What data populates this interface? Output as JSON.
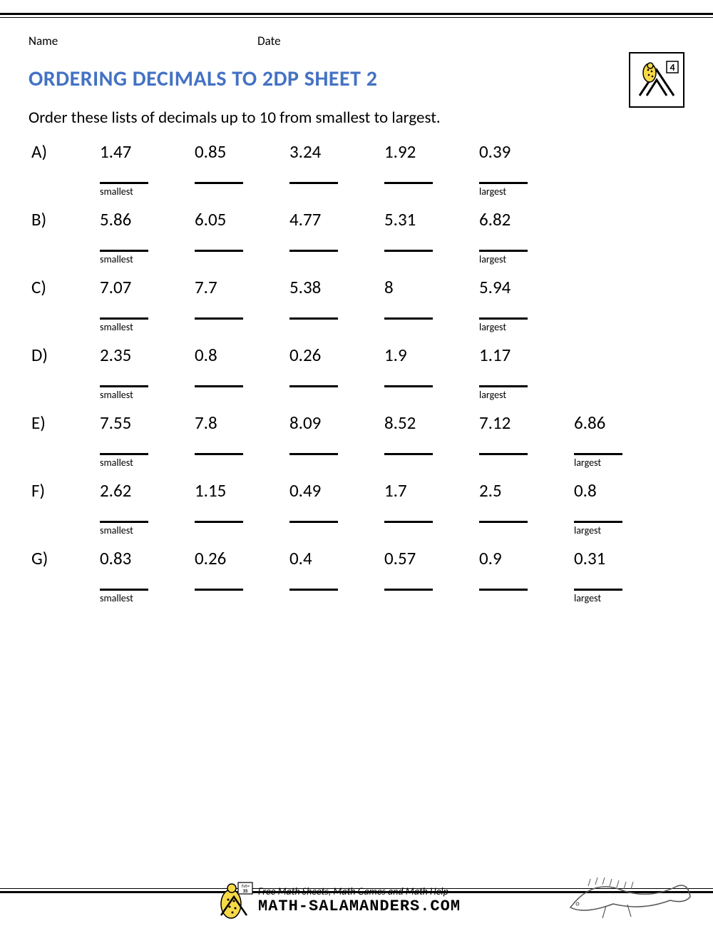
{
  "meta": {
    "name_label": "Name",
    "date_label": "Date",
    "grade_number": "4"
  },
  "title": "ORDERING DECIMALS TO 2DP SHEET 2",
  "title_color": "#4472c4",
  "instructions": "Order these lists of decimals up to 10 from smallest to largest.",
  "smallest_label": "smallest",
  "largest_label": "largest",
  "problems": [
    {
      "letter": "A)",
      "values": [
        "1.47",
        "0.85",
        "3.24",
        "1.92",
        "0.39"
      ]
    },
    {
      "letter": "B)",
      "values": [
        "5.86",
        "6.05",
        "4.77",
        "5.31",
        "6.82"
      ]
    },
    {
      "letter": "C)",
      "values": [
        "7.07",
        "7.7",
        "5.38",
        "8",
        "5.94"
      ]
    },
    {
      "letter": "D)",
      "values": [
        "2.35",
        "0.8",
        "0.26",
        "1.9",
        "1.17"
      ]
    },
    {
      "letter": "E)",
      "values": [
        "7.55",
        "7.8",
        "8.09",
        "8.52",
        "7.12",
        "6.86"
      ]
    },
    {
      "letter": "F)",
      "values": [
        "2.62",
        "1.15",
        "0.49",
        "1.7",
        "2.5",
        "0.8"
      ]
    },
    {
      "letter": "G)",
      "values": [
        "0.83",
        "0.26",
        "0.4",
        "0.57",
        "0.9",
        "0.31"
      ]
    }
  ],
  "footer": {
    "line1": "Free Math Sheets, Math Games and Math Help",
    "line2": "MATH-SALAMANDERS.COM"
  },
  "typography": {
    "title_fontsize": 30,
    "body_fontsize": 25,
    "instructions_fontsize": 23,
    "small_label_fontsize": 14
  },
  "colors": {
    "page_bg": "#ffffff",
    "text": "#000000",
    "title": "#4472c4",
    "border": "#000000"
  }
}
